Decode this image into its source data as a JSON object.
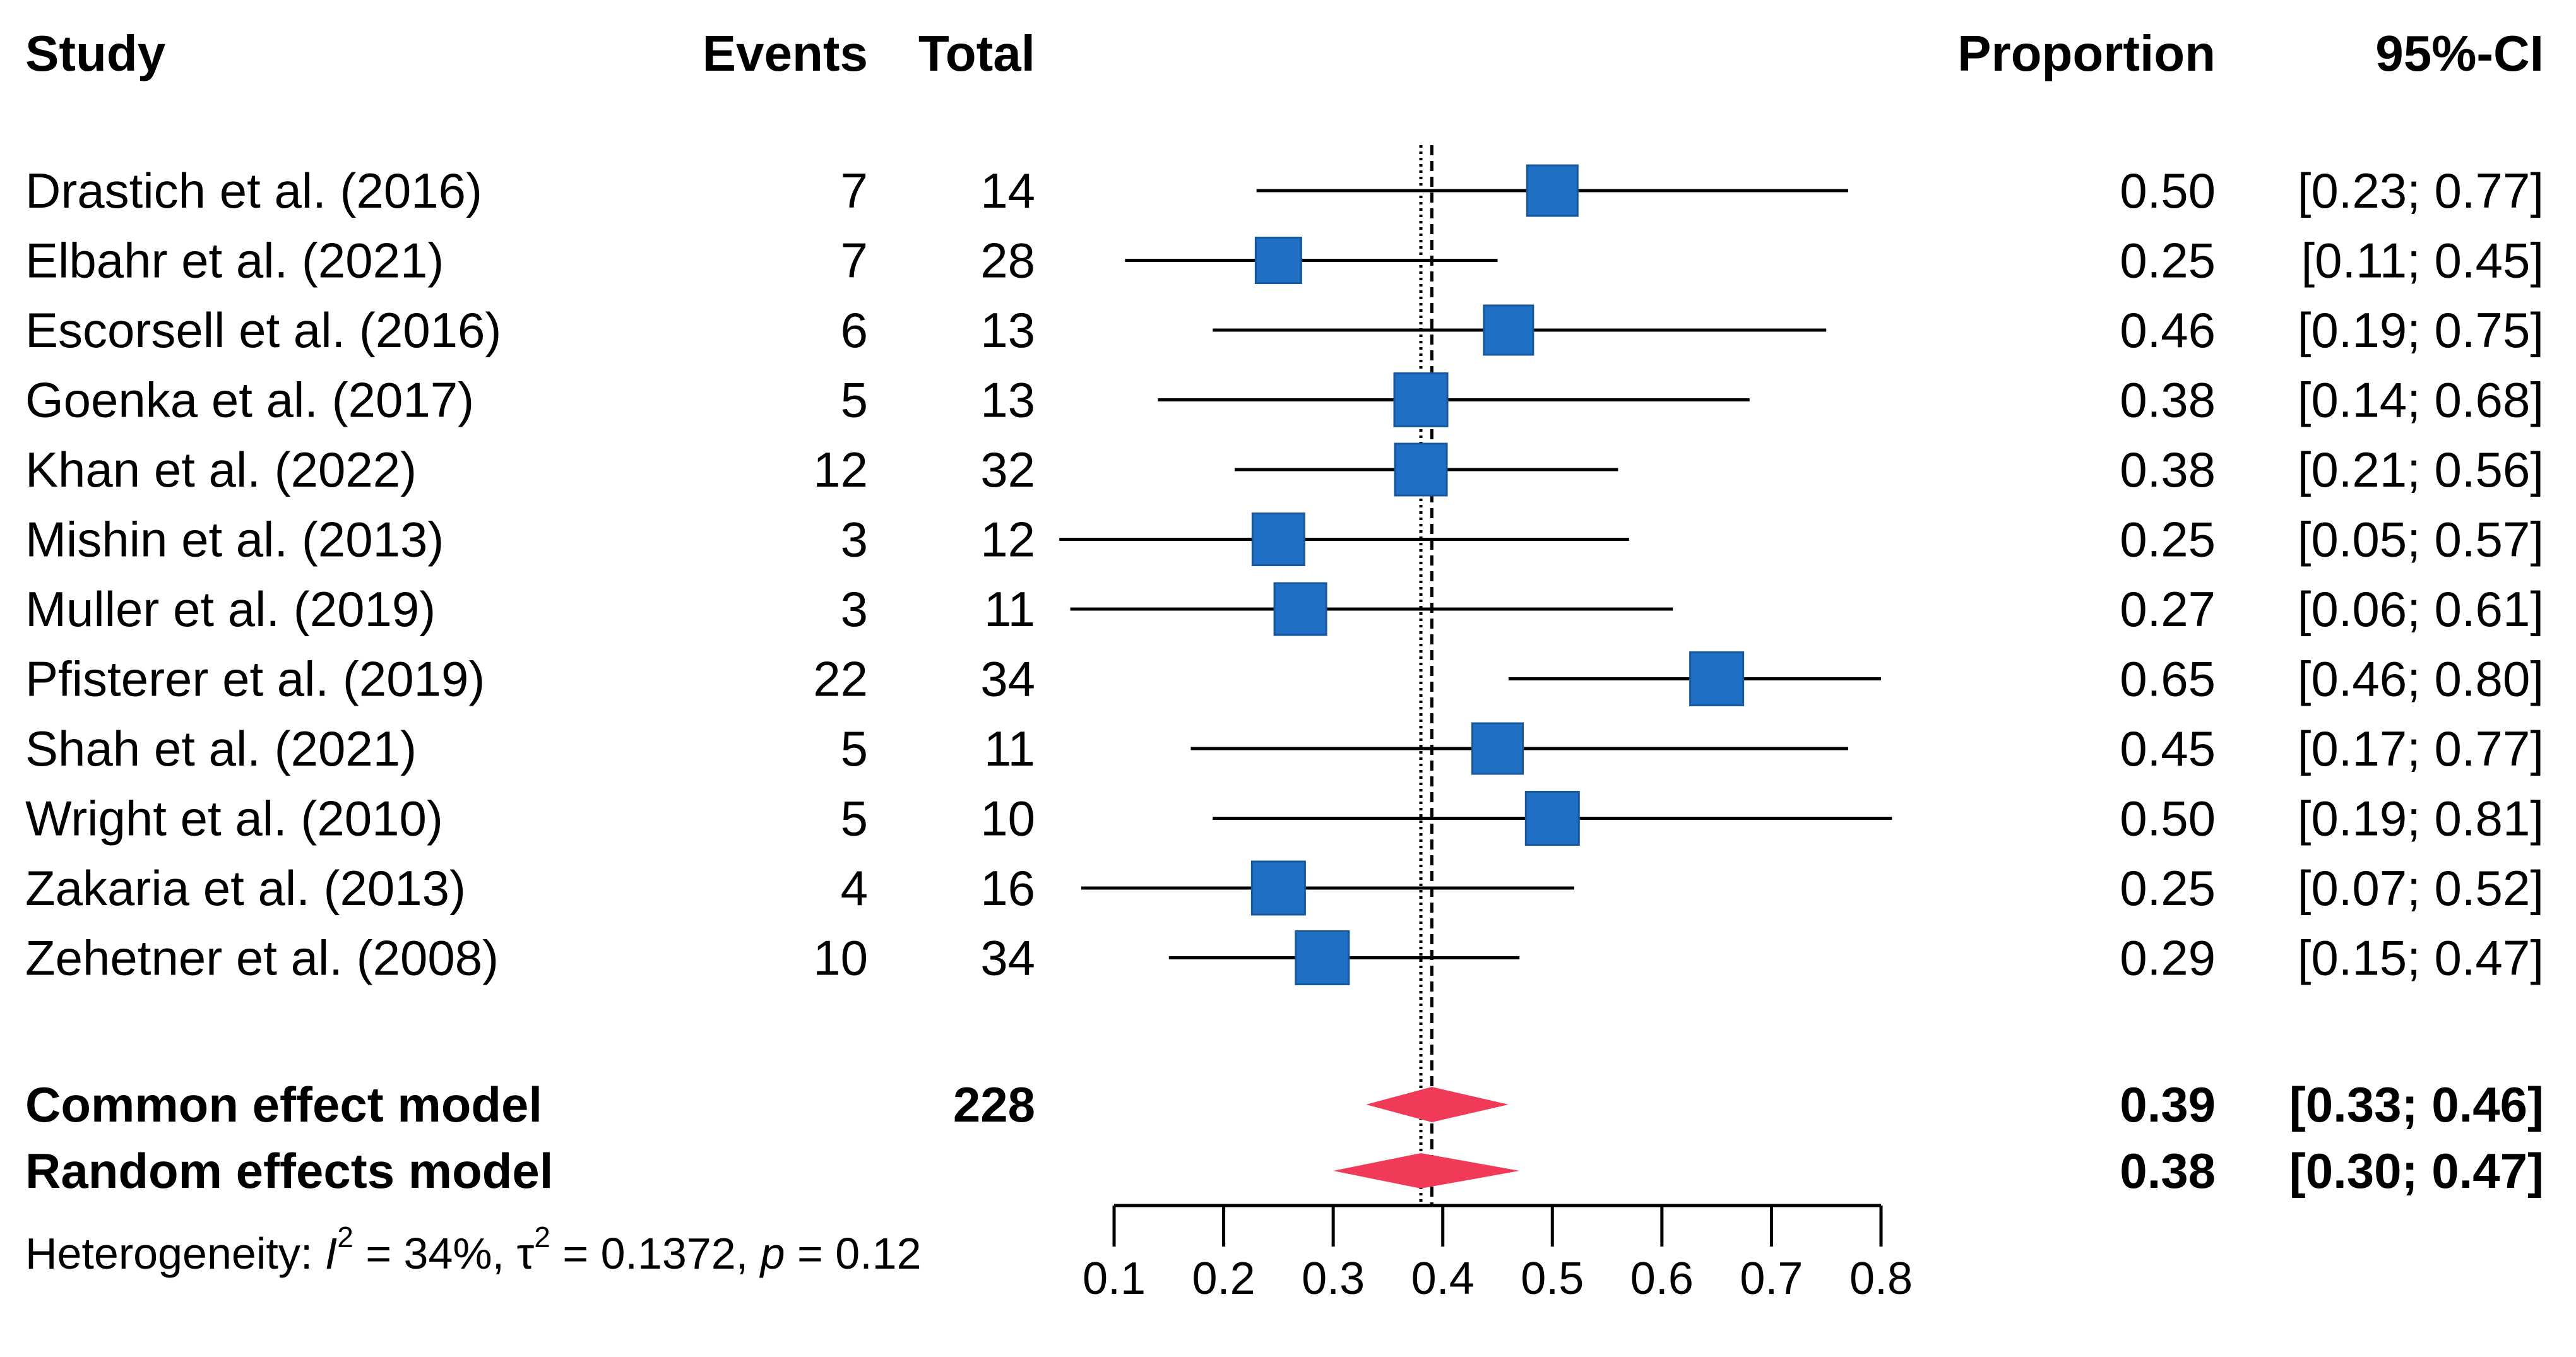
{
  "chart_data": {
    "type": "forest",
    "headers": {
      "study": "Study",
      "events": "Events",
      "total": "Total",
      "proportion": "Proportion",
      "ci": "95%-CI"
    },
    "xlim": [
      0.1,
      0.8
    ],
    "ticks": [
      "0.1",
      "0.2",
      "0.3",
      "0.4",
      "0.5",
      "0.6",
      "0.7",
      "0.8"
    ],
    "common_line": 0.39,
    "random_line": 0.38,
    "studies": [
      {
        "name": "Drastich et al. (2016)",
        "events": "7",
        "total": "14",
        "prop": "0.50",
        "ci": "[0.23; 0.77]",
        "est": 0.5,
        "lo": 0.23,
        "hi": 0.77
      },
      {
        "name": "Elbahr et al. (2021)",
        "events": "7",
        "total": "28",
        "prop": "0.25",
        "ci": "[0.11; 0.45]",
        "est": 0.25,
        "lo": 0.11,
        "hi": 0.45
      },
      {
        "name": "Escorsell et al. (2016)",
        "events": "6",
        "total": "13",
        "prop": "0.46",
        "ci": "[0.19; 0.75]",
        "est": 0.46,
        "lo": 0.19,
        "hi": 0.75
      },
      {
        "name": "Goenka et al. (2017)",
        "events": "5",
        "total": "13",
        "prop": "0.38",
        "ci": "[0.14; 0.68]",
        "est": 0.38,
        "lo": 0.14,
        "hi": 0.68
      },
      {
        "name": "Khan  et al. (2022)",
        "events": "12",
        "total": "32",
        "prop": "0.38",
        "ci": "[0.21; 0.56]",
        "est": 0.38,
        "lo": 0.21,
        "hi": 0.56
      },
      {
        "name": "Mishin et al. (2013)",
        "events": "3",
        "total": "12",
        "prop": "0.25",
        "ci": "[0.05; 0.57]",
        "est": 0.25,
        "lo": 0.05,
        "hi": 0.57
      },
      {
        "name": "Muller et al. (2019)",
        "events": "3",
        "total": "11",
        "prop": "0.27",
        "ci": "[0.06; 0.61]",
        "est": 0.27,
        "lo": 0.06,
        "hi": 0.61
      },
      {
        "name": "Pfisterer et al. (2019)",
        "events": "22",
        "total": "34",
        "prop": "0.65",
        "ci": "[0.46; 0.80]",
        "est": 0.65,
        "lo": 0.46,
        "hi": 0.8
      },
      {
        "name": "Shah et al. (2021)",
        "events": "5",
        "total": "11",
        "prop": "0.45",
        "ci": "[0.17; 0.77]",
        "est": 0.45,
        "lo": 0.17,
        "hi": 0.77
      },
      {
        "name": "Wright et al. (2010)",
        "events": "5",
        "total": "10",
        "prop": "0.50",
        "ci": "[0.19; 0.81]",
        "est": 0.5,
        "lo": 0.19,
        "hi": 0.81
      },
      {
        "name": "Zakaria et al. (2013)",
        "events": "4",
        "total": "16",
        "prop": "0.25",
        "ci": "[0.07; 0.52]",
        "est": 0.25,
        "lo": 0.07,
        "hi": 0.52
      },
      {
        "name": "Zehetner et al. (2008)",
        "events": "10",
        "total": "34",
        "prop": "0.29",
        "ci": "[0.15; 0.47]",
        "est": 0.29,
        "lo": 0.15,
        "hi": 0.47
      }
    ],
    "pooled": [
      {
        "name": "Common effect model",
        "total": "228",
        "prop": "0.39",
        "ci": "[0.33; 0.46]",
        "est": 0.39,
        "lo": 0.33,
        "hi": 0.46
      },
      {
        "name": "Random effects model",
        "total": "",
        "prop": "0.38",
        "ci": "[0.30; 0.47]",
        "est": 0.38,
        "lo": 0.3,
        "hi": 0.47
      }
    ],
    "heterogeneity": {
      "prefix": "Heterogeneity: ",
      "i_sym": "I",
      "sup": "2",
      "i2": " = 34%, ",
      "tau_sym": "τ",
      "tau2": " = 0.1372, ",
      "p_sym": "p",
      "p_val": " = 0.12"
    },
    "colors": {
      "square": "#1f6fc5",
      "square_edge": "#17579c",
      "diamond": "#f03a57",
      "line": "#000000"
    }
  }
}
